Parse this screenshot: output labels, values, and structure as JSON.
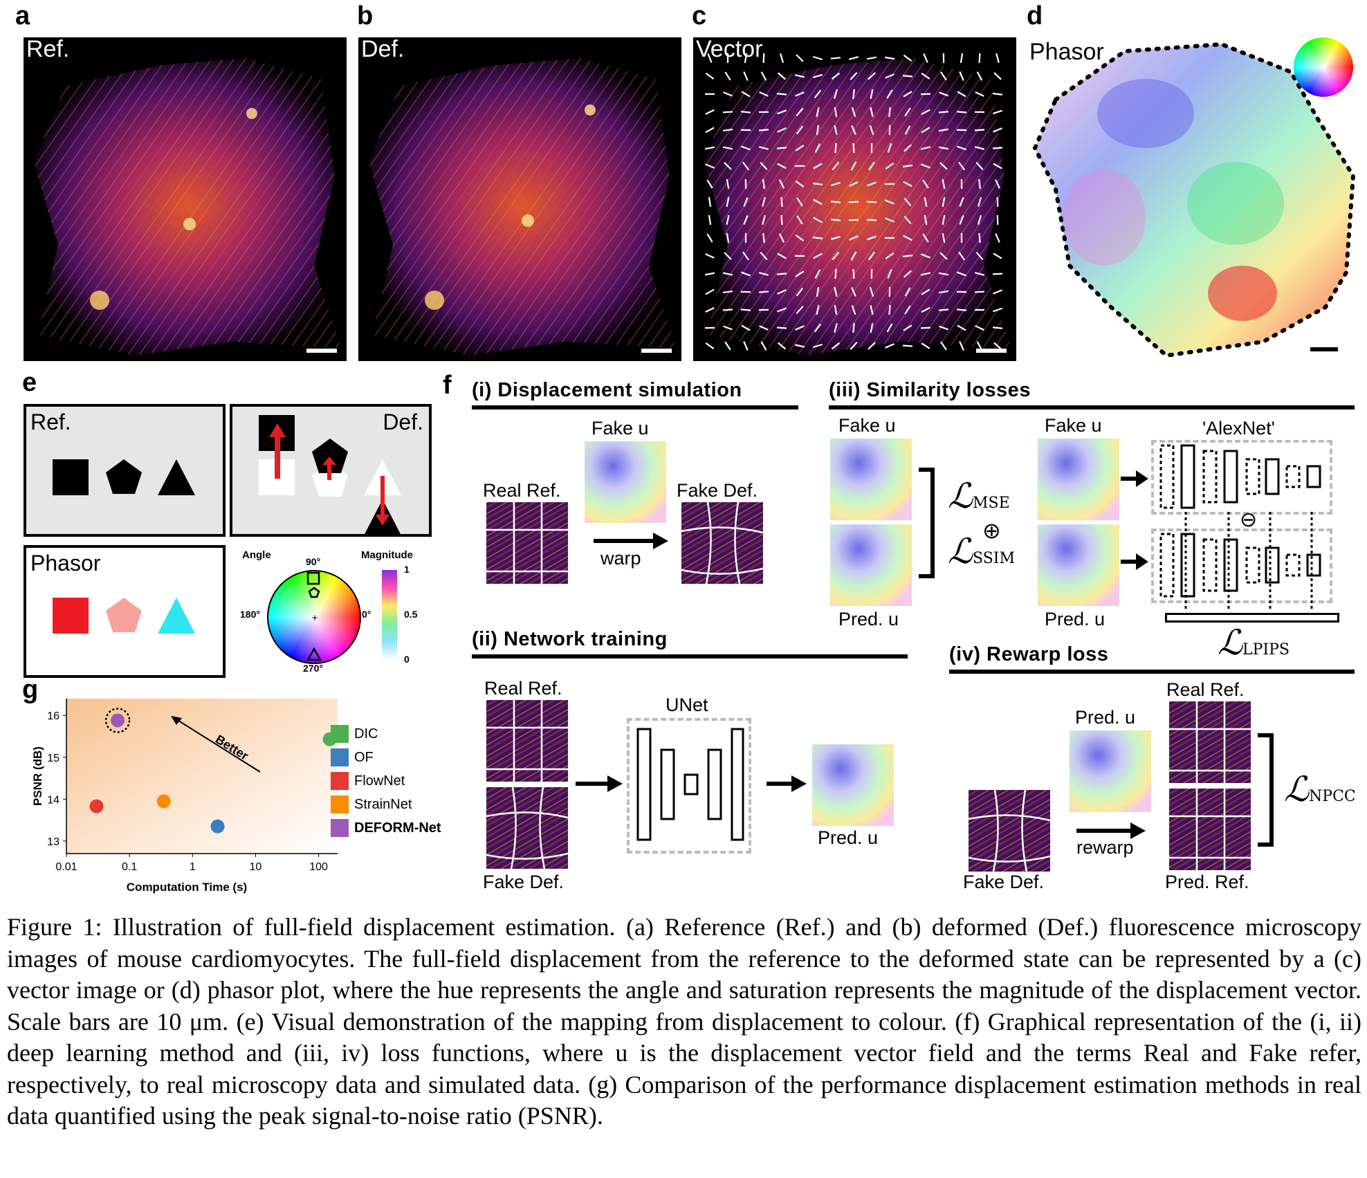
{
  "panels": {
    "a": {
      "letter": "a",
      "label": "Ref."
    },
    "b": {
      "letter": "b",
      "label": "Def."
    },
    "c": {
      "letter": "c",
      "label": "Vector"
    },
    "d": {
      "letter": "d",
      "label": "Phasor"
    },
    "e": {
      "letter": "e",
      "ref_label": "Ref.",
      "def_label": "Def.",
      "phasor_label": "Phasor",
      "wheel": {
        "angle_label": "Angle",
        "magnitude_label": "Magnitude",
        "deg90": "90°",
        "deg180": "180°",
        "deg0": "0°",
        "deg270": "270°",
        "mag_ticks": [
          "1",
          "0.5",
          "0"
        ]
      }
    },
    "f": {
      "letter": "f",
      "i": {
        "title": "(i) Displacement simulation",
        "fake_u": "Fake u",
        "real_ref": "Real Ref.",
        "fake_def": "Fake Def.",
        "warp": "warp"
      },
      "ii": {
        "title": "(ii) Network training",
        "real_ref": "Real Ref.",
        "fake_def": "Fake Def.",
        "unet": "UNet",
        "pred_u": "Pred. u"
      },
      "iii": {
        "title": "(iii) Similarity losses",
        "fake_u_1": "Fake u",
        "pred_u_1": "Pred. u",
        "fake_u_2": "Fake u",
        "pred_u_2": "Pred. u",
        "alexnet": "'AlexNet'",
        "loss_mse": "MSE",
        "loss_ssim": "SSIM",
        "loss_lpips": "LPIPS",
        "plus": "⊕",
        "minus": "⊖"
      },
      "iv": {
        "title": "(iv) Rewarp loss",
        "pred_u": "Pred. u",
        "real_ref": "Real Ref.",
        "fake_def": "Fake Def.",
        "pred_ref": "Pred. Ref.",
        "rewarp": "rewarp",
        "loss_npcc": "NPCC"
      }
    },
    "g": {
      "letter": "g",
      "better": "Better"
    }
  },
  "chart_data": {
    "type": "scatter",
    "xlabel": "Computation Time (s)",
    "ylabel": "PSNR (dB)",
    "xscale": "log",
    "xlim": [
      0.01,
      200
    ],
    "ylim": [
      12.7,
      16.4
    ],
    "xticks": [
      "0.01",
      "0.1",
      "1",
      "10",
      "100"
    ],
    "yticks": [
      "13",
      "14",
      "15",
      "16"
    ],
    "legend_position": "right",
    "series": [
      {
        "name": "DIC",
        "color": "#4caf50",
        "x": 150,
        "y": 15.43
      },
      {
        "name": "OF",
        "color": "#3a7fc0",
        "x": 2.5,
        "y": 13.35
      },
      {
        "name": "FlowNet",
        "color": "#e53935",
        "x": 0.03,
        "y": 13.83
      },
      {
        "name": "StrainNet",
        "color": "#fb8c00",
        "x": 0.35,
        "y": 13.95
      },
      {
        "name": "DEFORM-Net",
        "color": "#9c59b6",
        "x": 0.065,
        "y": 15.88
      }
    ]
  },
  "caption": "Figure 1: Illustration of full-field displacement estimation. (a) Reference (Ref.) and (b) deformed (Def.) fluorescence microscopy images of mouse cardiomyocytes. The full-field displacement from the reference to the deformed state can be represented by a (c) vector image or (d) phasor plot, where the hue represents the angle and saturation represents the magnitude of the displacement vector. Scale bars are 10 μm. (e) Visual demonstration of the mapping from displacement to colour. (f) Graphical representation of the (i, ii) deep learning method and (iii, iv) loss functions, where u is the displacement vector field and the terms Real and Fake refer, respectively, to real microscopy data and simulated data. (g) Comparison of the performance displacement estimation methods in real data quantified using the peak signal-to-noise ratio (PSNR)."
}
